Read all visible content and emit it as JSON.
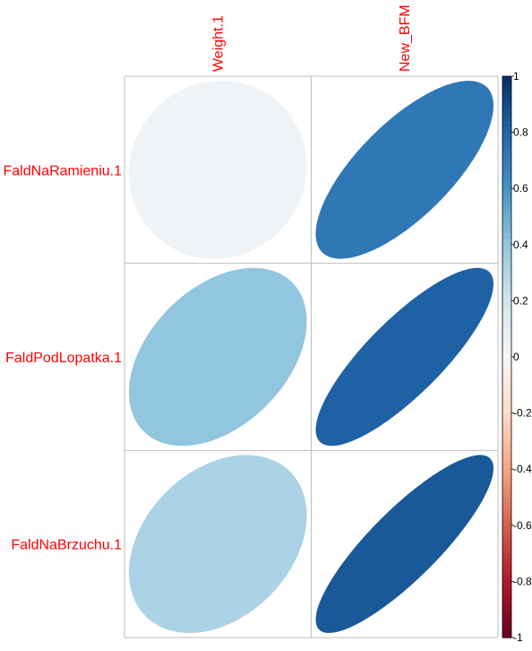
{
  "chart_data": {
    "type": "heatmap",
    "rows": [
      "FaldNaRamieniu.1",
      "FaldPodLopatka.1",
      "FaldNaBrzuchu.1"
    ],
    "columns": [
      "Weight.1",
      "New_BFM"
    ],
    "values": [
      [
        0.04,
        0.72
      ],
      [
        0.4,
        0.82
      ],
      [
        0.32,
        0.85
      ]
    ],
    "colorbar": {
      "ticks": [
        "-1",
        "-0.8",
        "-0.6",
        "-0.4",
        "-0.2",
        "0",
        "0.2",
        "0.4",
        "0.6",
        "0.8",
        "1"
      ],
      "range": [
        -1,
        1
      ],
      "colors": {
        "neg": "#67001f",
        "mid": "#f7f7f7",
        "pos": "#053061"
      }
    },
    "label_color": "#ff0000",
    "grid": true
  }
}
